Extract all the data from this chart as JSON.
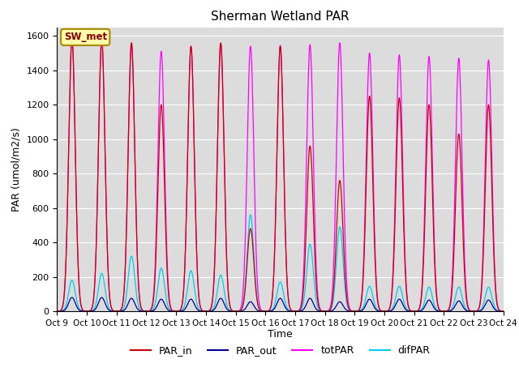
{
  "title": "Sherman Wetland PAR",
  "ylabel": "PAR (umol/m2/s)",
  "xlabel": "Time",
  "ylim": [
    0,
    1650
  ],
  "xlim": [
    0,
    15
  ],
  "background_color": "#dcdcdc",
  "legend_label": "SW_met",
  "lines": {
    "PAR_in": {
      "color": "#cc0000",
      "lw": 0.9
    },
    "PAR_out": {
      "color": "#000099",
      "lw": 0.9
    },
    "totPAR": {
      "color": "#ff00ff",
      "lw": 0.9
    },
    "difPAR": {
      "color": "#00ccee",
      "lw": 0.9
    }
  },
  "day_peaks": {
    "PAR_in": [
      1580,
      1570,
      1560,
      1200,
      1540,
      1560,
      480,
      1540,
      960,
      760,
      1250,
      1240,
      1200,
      1030,
      1200
    ],
    "totPAR": [
      1590,
      1585,
      1555,
      1510,
      1540,
      1555,
      1540,
      1545,
      1550,
      1560,
      1500,
      1490,
      1480,
      1470,
      1460
    ],
    "PAR_out": [
      80,
      80,
      75,
      70,
      70,
      75,
      55,
      75,
      75,
      55,
      70,
      70,
      65,
      60,
      65
    ],
    "difPAR": [
      180,
      220,
      320,
      250,
      235,
      210,
      560,
      170,
      390,
      490,
      145,
      145,
      140,
      140,
      140
    ]
  },
  "n_days": 15,
  "pts_per_day": 96,
  "tick_labels": [
    "Oct 9",
    "Oct 10",
    "Oct 11",
    "Oct 12",
    "Oct 13",
    "Oct 14",
    "Oct 15",
    "Oct 16",
    "Oct 17",
    "Oct 18",
    "Oct 19",
    "Oct 20",
    "Oct 21",
    "Oct 22",
    "Oct 23",
    "Oct 24"
  ],
  "tick_positions": [
    0,
    1,
    2,
    3,
    4,
    5,
    6,
    7,
    8,
    9,
    10,
    11,
    12,
    13,
    14,
    15
  ],
  "yticks": [
    0,
    200,
    400,
    600,
    800,
    1000,
    1200,
    1400,
    1600
  ]
}
